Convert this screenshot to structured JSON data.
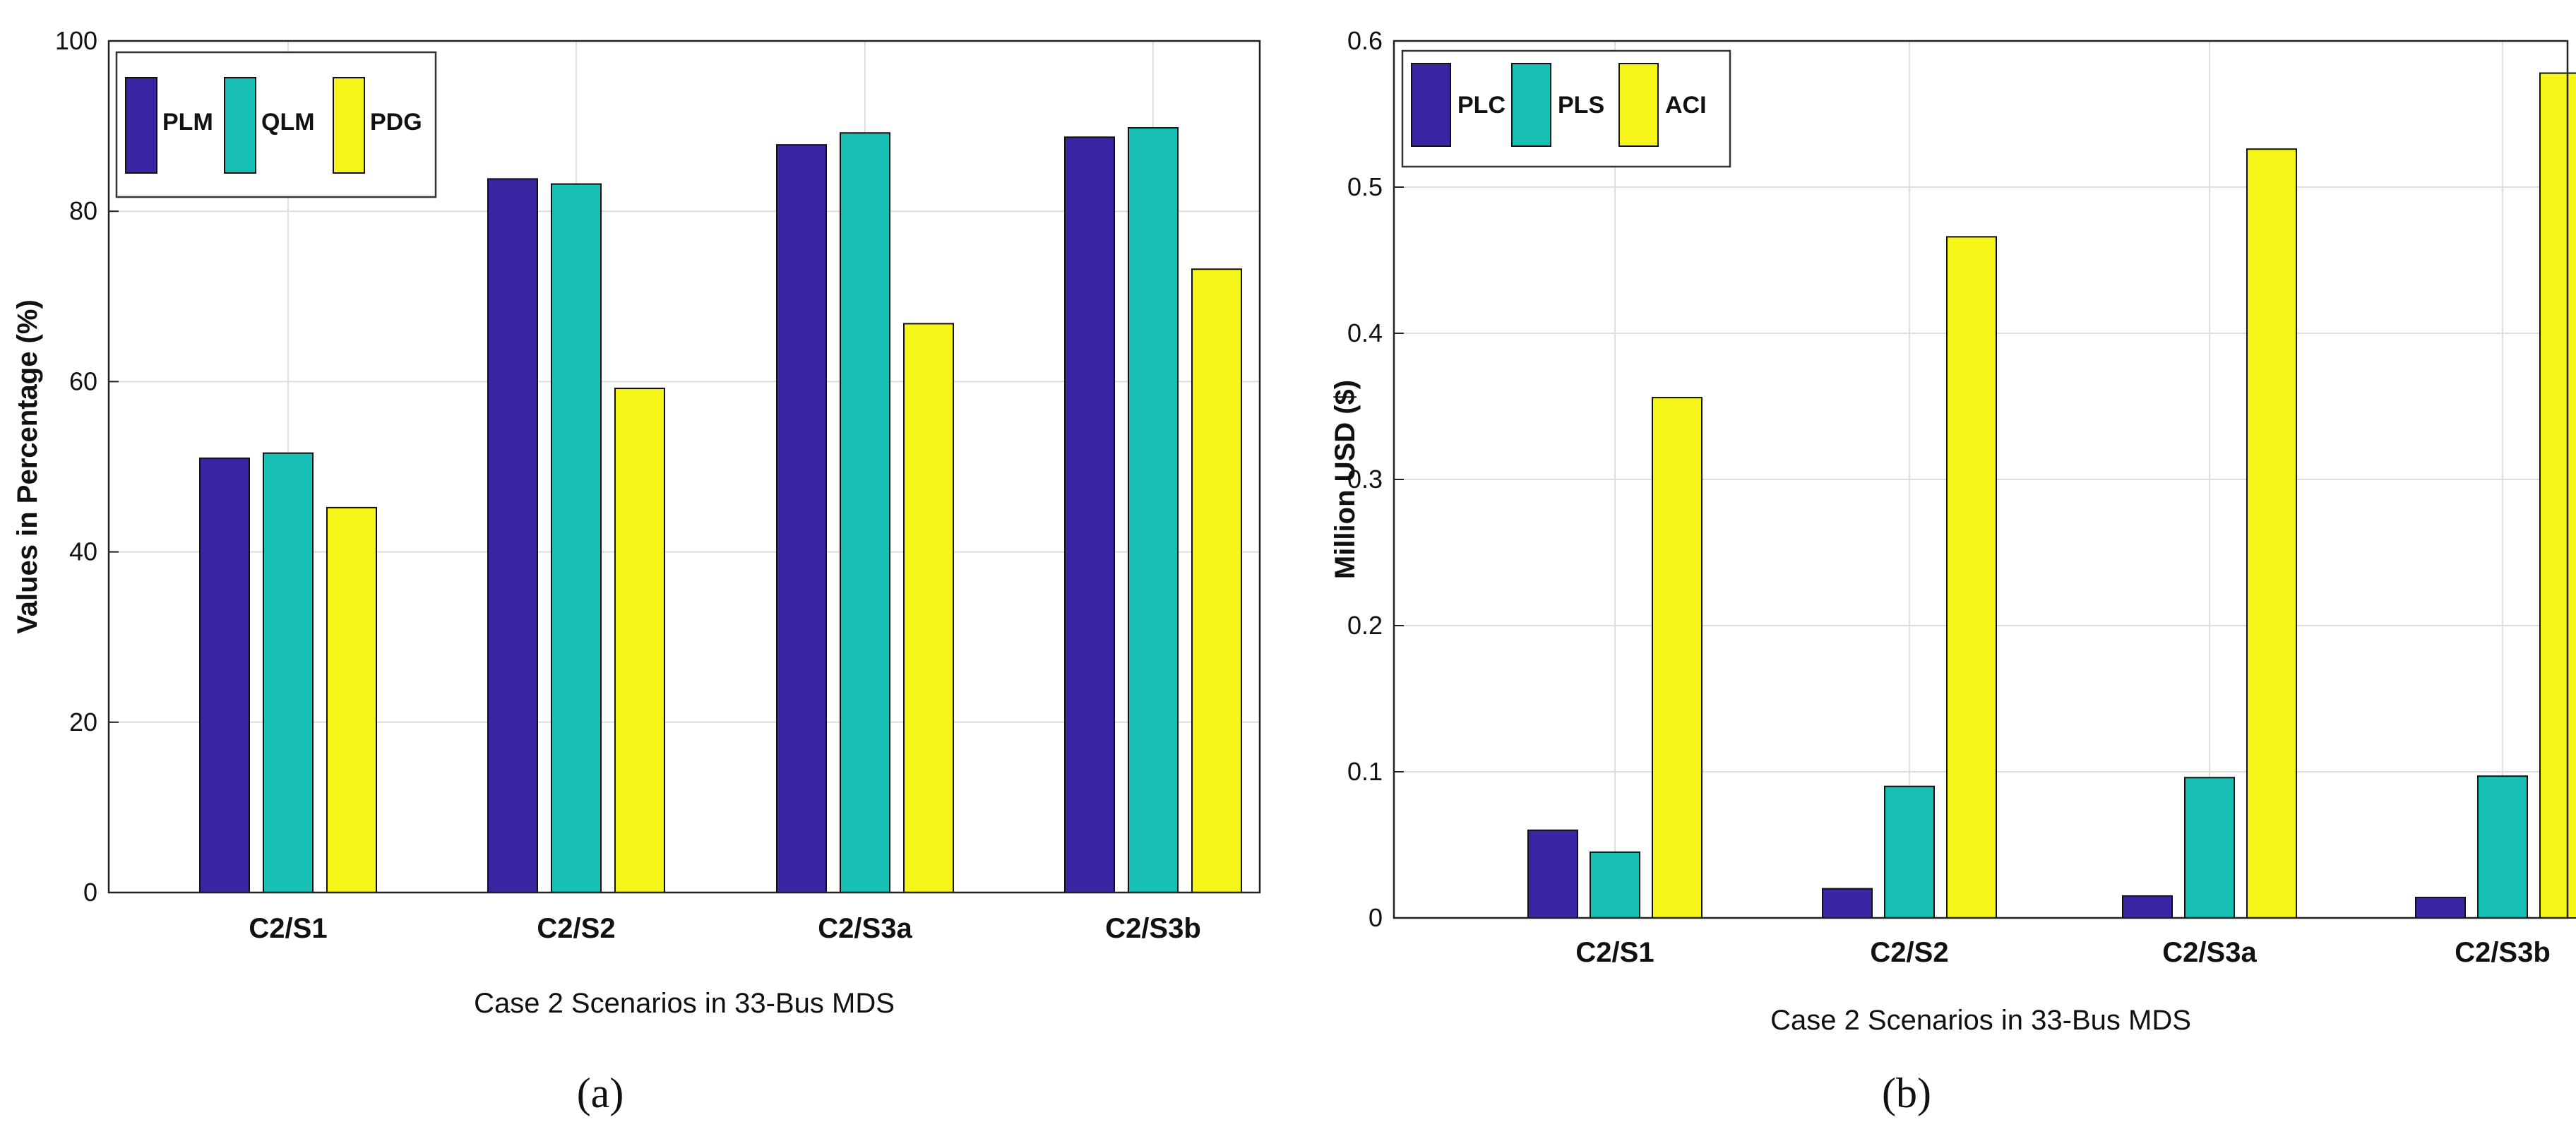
{
  "chart_data": [
    {
      "type": "bar",
      "panel_label": "(a)",
      "categories": [
        "C2/S1",
        "C2/S2",
        "C2/S3a",
        "C2/S3b"
      ],
      "series": [
        {
          "name": "PLM",
          "color": "#3b25a3",
          "values": [
            51,
            83.8,
            87.8,
            88.7
          ]
        },
        {
          "name": "QLM",
          "color": "#17bfb4",
          "values": [
            51.6,
            83.2,
            89.2,
            89.8
          ]
        },
        {
          "name": "PDG",
          "color": "#f5f51a",
          "values": [
            45.2,
            59.2,
            66.8,
            73.2
          ]
        }
      ],
      "xlabel": "Case 2 Scenarios in 33-Bus MDS",
      "ylabel": "Values in Percentage (%)",
      "ylim": [
        0,
        100
      ],
      "yticks": [
        "0",
        "20",
        "40",
        "60",
        "80",
        "100"
      ],
      "grid": true,
      "legend_position": "top-left"
    },
    {
      "type": "bar",
      "panel_label": "(b)",
      "categories": [
        "C2/S1",
        "C2/S2",
        "C2/S3a",
        "C2/S3b"
      ],
      "series": [
        {
          "name": "PLC",
          "color": "#3b25a3",
          "values": [
            0.06,
            0.02,
            0.015,
            0.014
          ]
        },
        {
          "name": "PLS",
          "color": "#17bfb4",
          "values": [
            0.045,
            0.09,
            0.096,
            0.097
          ]
        },
        {
          "name": "ACI",
          "color": "#f5f51a",
          "values": [
            0.356,
            0.466,
            0.526,
            0.578
          ]
        }
      ],
      "xlabel": "Case 2 Scenarios in 33-Bus MDS",
      "ylabel": "Million USD ($)",
      "ylim": [
        0,
        0.6
      ],
      "yticks": [
        "0",
        "0.1",
        "0.2",
        "0.3",
        "0.4",
        "0.5",
        "0.6"
      ],
      "grid": true,
      "legend_position": "top-left"
    }
  ]
}
